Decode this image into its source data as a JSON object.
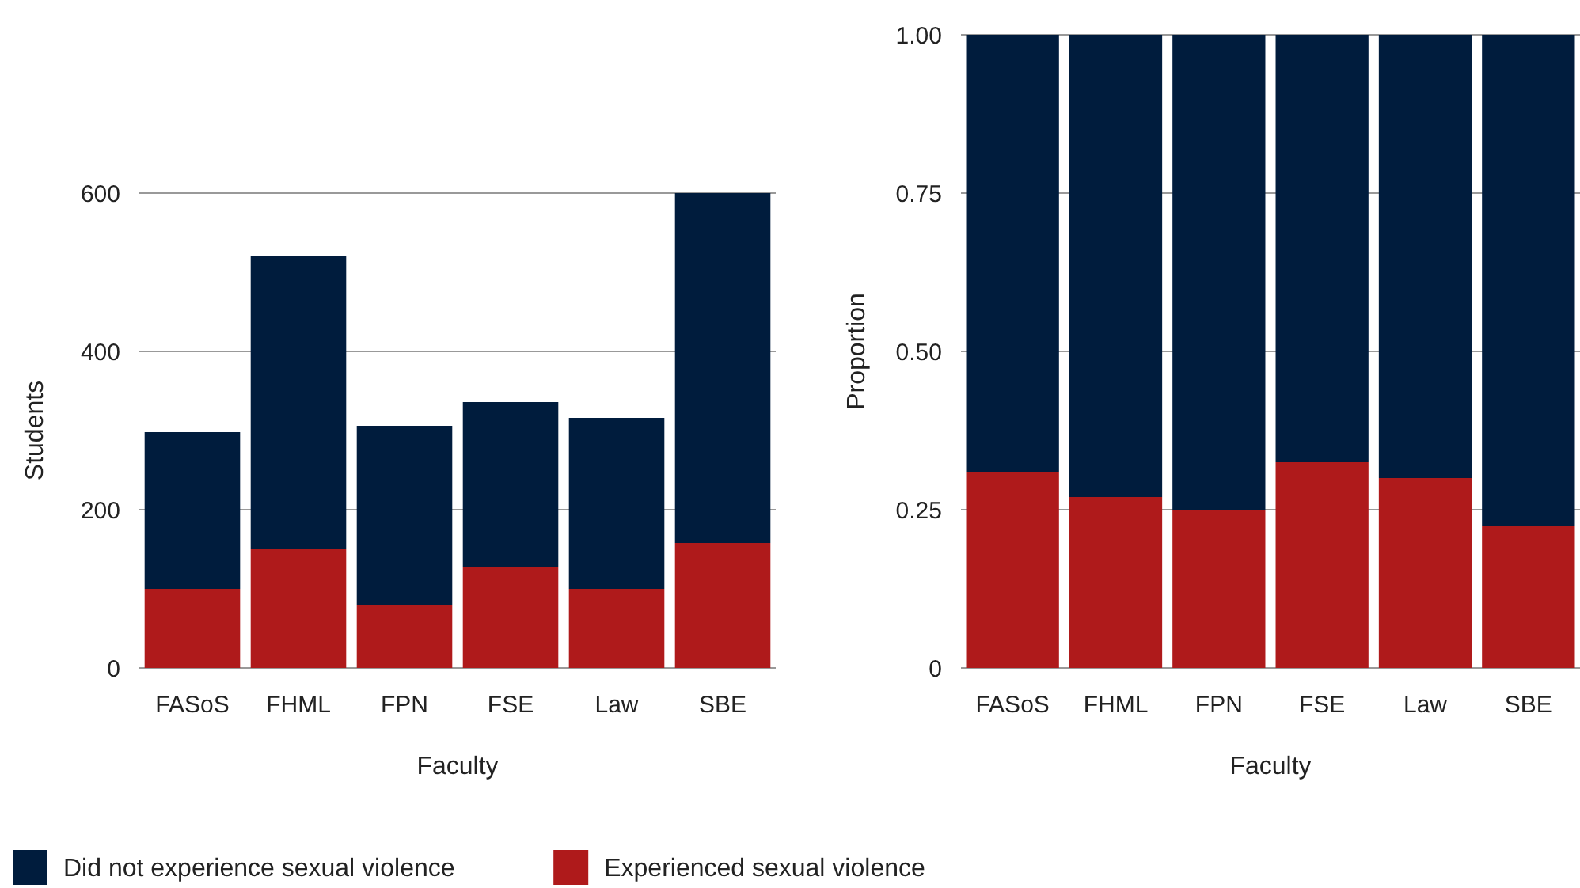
{
  "chart_data": [
    {
      "type": "bar",
      "stacked": true,
      "xlabel": "Faculty",
      "ylabel": "Students",
      "categories": [
        "FASoS",
        "FHML",
        "FPN",
        "FSE",
        "Law",
        "SBE"
      ],
      "ylim": [
        0,
        600
      ],
      "yticks": [
        0,
        200,
        400,
        600
      ],
      "grid": "y",
      "legend": "bottom",
      "series": [
        {
          "name": "Experienced sexual violence",
          "color": "#af1a1b",
          "values": [
            100,
            150,
            80,
            128,
            100,
            158
          ]
        },
        {
          "name": "Did not experience sexual violence",
          "color": "#001c3d",
          "values": [
            198,
            370,
            226,
            208,
            216,
            442
          ]
        }
      ]
    },
    {
      "type": "bar",
      "stacked": true,
      "xlabel": "Faculty",
      "ylabel": "Proportion",
      "categories": [
        "FASoS",
        "FHML",
        "FPN",
        "FSE",
        "Law",
        "SBE"
      ],
      "ylim": [
        0,
        1
      ],
      "yticks": [
        0,
        {
          "value": 0.25,
          "label": "0.25"
        },
        {
          "value": 0.5,
          "label": "0.50"
        },
        {
          "value": 0.75,
          "label": "0.75"
        },
        {
          "value": 1,
          "label": "1.00"
        }
      ],
      "grid": "y",
      "series": [
        {
          "color": "#af1a1b",
          "values": [
            0.31,
            0.27,
            0.25,
            0.325,
            0.3,
            0.225
          ]
        },
        {
          "color": "#001c3d",
          "values": [
            0.69,
            0.73,
            0.75,
            0.675,
            0.7,
            0.775
          ]
        }
      ]
    }
  ]
}
